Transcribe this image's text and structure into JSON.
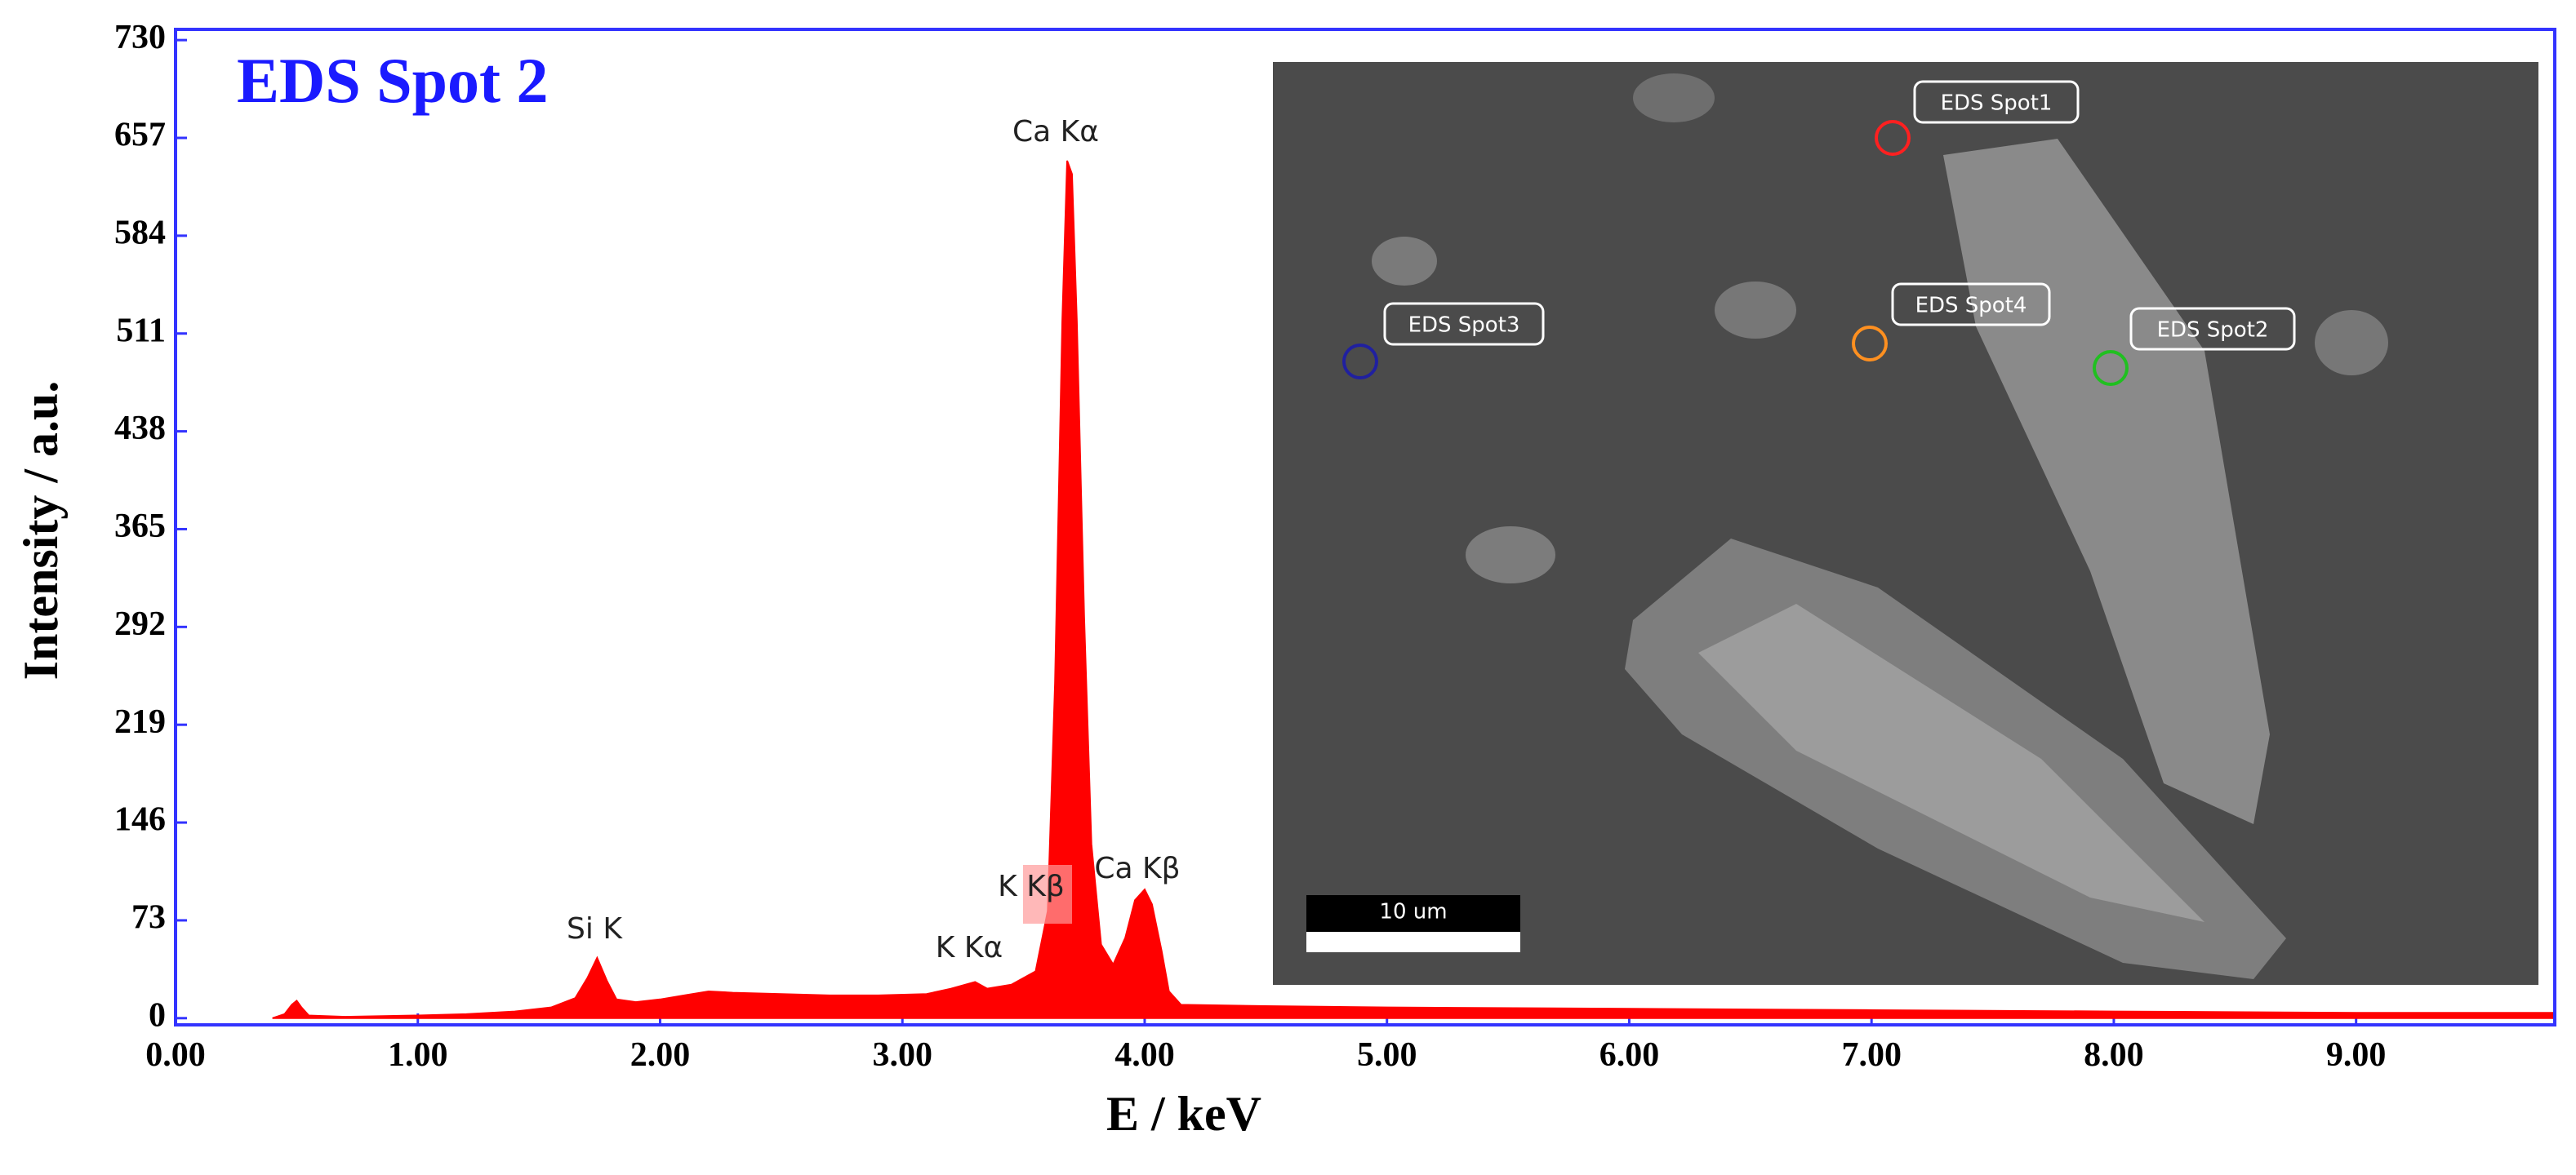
{
  "chart_data": {
    "type": "area",
    "title": "EDS Spot 2",
    "x_label": "E / keV",
    "y_label": "Intensity / a.u.",
    "color": "#ff0000",
    "x": [
      0.4,
      0.45,
      0.48,
      0.5,
      0.52,
      0.55,
      0.7,
      1.0,
      1.2,
      1.4,
      1.55,
      1.65,
      1.7,
      1.74,
      1.78,
      1.82,
      1.9,
      2.0,
      2.1,
      2.2,
      2.3,
      2.5,
      2.7,
      2.9,
      3.1,
      3.2,
      3.3,
      3.35,
      3.45,
      3.55,
      3.6,
      3.63,
      3.66,
      3.68,
      3.7,
      3.72,
      3.75,
      3.78,
      3.82,
      3.87,
      3.92,
      3.96,
      4.0,
      4.03,
      4.07,
      4.1,
      4.15,
      4.5,
      5.0,
      6.0,
      7.0,
      8.0,
      9.0,
      9.82
    ],
    "values": [
      0,
      3,
      10,
      13,
      8,
      2,
      1,
      2,
      3,
      5,
      8,
      15,
      30,
      45,
      28,
      14,
      12,
      14,
      17,
      20,
      19,
      18,
      17,
      17,
      18,
      22,
      27,
      22,
      25,
      35,
      80,
      250,
      520,
      640,
      630,
      520,
      300,
      130,
      55,
      40,
      60,
      88,
      96,
      85,
      50,
      20,
      10,
      9,
      8,
      7,
      6,
      5,
      4,
      4
    ],
    "xlim": [
      0,
      9.82
    ],
    "ylim": [
      -5,
      738
    ],
    "xticks": [
      {
        "value": 0,
        "label": "0.00"
      },
      {
        "value": 1,
        "label": "1.00"
      },
      {
        "value": 2,
        "label": "2.00"
      },
      {
        "value": 3,
        "label": "3.00"
      },
      {
        "value": 4,
        "label": "4.00"
      },
      {
        "value": 5,
        "label": "5.00"
      },
      {
        "value": 6,
        "label": "6.00"
      },
      {
        "value": 7,
        "label": "7.00"
      },
      {
        "value": 8,
        "label": "8.00"
      },
      {
        "value": 9,
        "label": "9.00"
      }
    ],
    "yticks": [
      0,
      73,
      146,
      219,
      292,
      365,
      438,
      511,
      584,
      657,
      730
    ],
    "annotations": [
      "Ca Kα",
      "Si K",
      "K  Kα",
      "K  Kβ",
      "Ca Kβ"
    ],
    "inset": {
      "labels": [
        "EDS Spot1",
        "EDS Spot3",
        "EDS Spot4",
        "EDS Spot2"
      ],
      "scale_bar": "10 um"
    }
  }
}
